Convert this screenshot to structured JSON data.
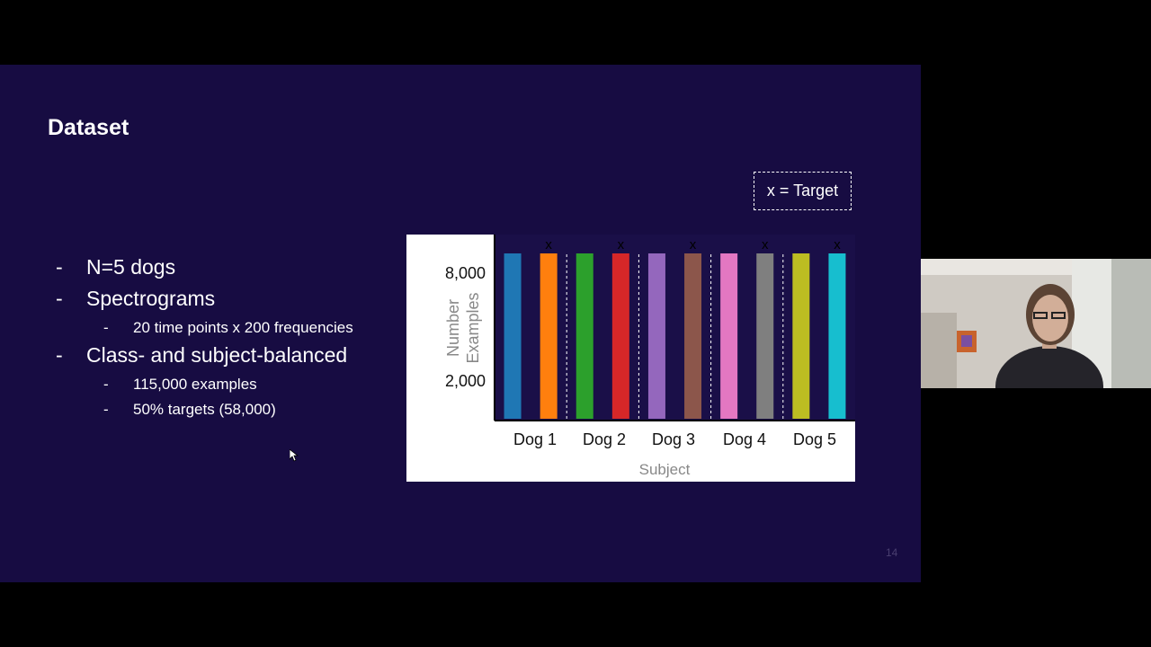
{
  "slide": {
    "title": "Dataset",
    "page_number": "14",
    "bullets": [
      {
        "dash": "-",
        "text": "N=5 dogs"
      },
      {
        "dash": "-",
        "text": "Spectrograms"
      },
      {
        "dash": "-",
        "text": "20 time points x 200 frequencies"
      },
      {
        "dash": "-",
        "text": "Class- and subject-balanced"
      },
      {
        "dash": "-",
        "text": "115,000 examples"
      },
      {
        "dash": "-",
        "text": "50% targets (58,000)"
      }
    ],
    "legend_note": "x = Target"
  },
  "chart_data": {
    "type": "bar",
    "xlabel": "Subject",
    "ylabel": "Number Examples",
    "yticks": [
      "8,000",
      "2,000"
    ],
    "categories": [
      "Dog 1",
      "Dog 2",
      "Dog 3",
      "Dog 4",
      "Dog 5"
    ],
    "target_marker": "x",
    "bars": [
      {
        "subject": "Dog 1",
        "target": false,
        "color": "#1f77b4"
      },
      {
        "subject": "Dog 1",
        "target": true,
        "color": "#ff7f0e"
      },
      {
        "subject": "Dog 2",
        "target": false,
        "color": "#2ca02c"
      },
      {
        "subject": "Dog 2",
        "target": true,
        "color": "#d62728"
      },
      {
        "subject": "Dog 3",
        "target": false,
        "color": "#9467bd"
      },
      {
        "subject": "Dog 3",
        "target": true,
        "color": "#8c564b"
      },
      {
        "subject": "Dog 4",
        "target": false,
        "color": "#e377c2"
      },
      {
        "subject": "Dog 4",
        "target": true,
        "color": "#7f7f7f"
      },
      {
        "subject": "Dog 5",
        "target": false,
        "color": "#bcbd22"
      },
      {
        "subject": "Dog 5",
        "target": true,
        "color": "#17becf"
      }
    ]
  }
}
